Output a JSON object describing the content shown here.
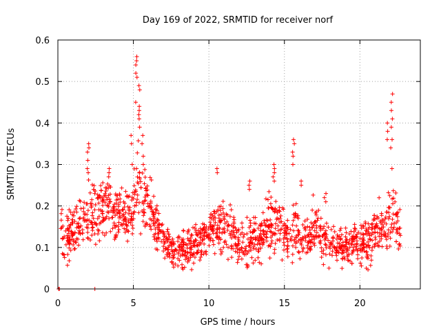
{
  "chart_data": {
    "type": "scatter",
    "title": "Day 169 of 2022, SRMTID for receiver norf",
    "xlabel": "GPS time / hours",
    "ylabel": "SRMTID / TECUs",
    "xlim": [
      0,
      24
    ],
    "ylim": [
      0,
      0.6
    ],
    "x_ticks": [
      0,
      5,
      10,
      15,
      20
    ],
    "x_tick_labels": [
      "0",
      "5",
      "10",
      "15",
      "20"
    ],
    "y_ticks": [
      0,
      0.1,
      0.2,
      0.3,
      0.4,
      0.5,
      0.6
    ],
    "y_tick_labels": [
      "0",
      "0.1",
      "0.2",
      "0.3",
      "0.4",
      "0.5",
      "0.6"
    ],
    "grid": true,
    "marker": "+",
    "series_color": "#ff0000",
    "envelope": {
      "x": [
        0.2,
        0.5,
        1.0,
        1.5,
        2.0,
        2.5,
        3.0,
        3.5,
        4.0,
        4.5,
        5.0,
        5.3,
        5.6,
        6.0,
        6.5,
        7.0,
        7.5,
        8.0,
        8.5,
        9.0,
        9.5,
        10.0,
        10.5,
        11.0,
        11.5,
        12.0,
        12.5,
        13.0,
        13.5,
        14.0,
        14.3,
        14.7,
        15.0,
        15.5,
        15.8,
        16.0,
        16.5,
        17.0,
        17.5,
        18.0,
        18.5,
        19.0,
        19.5,
        20.0,
        20.5,
        21.0,
        21.5,
        22.0,
        22.3,
        22.7
      ],
      "median": [
        0.15,
        0.11,
        0.14,
        0.16,
        0.17,
        0.18,
        0.19,
        0.2,
        0.18,
        0.17,
        0.2,
        0.26,
        0.22,
        0.2,
        0.16,
        0.12,
        0.09,
        0.09,
        0.1,
        0.11,
        0.12,
        0.14,
        0.15,
        0.14,
        0.13,
        0.11,
        0.1,
        0.12,
        0.14,
        0.16,
        0.17,
        0.14,
        0.13,
        0.12,
        0.15,
        0.12,
        0.13,
        0.14,
        0.13,
        0.11,
        0.1,
        0.1,
        0.11,
        0.11,
        0.12,
        0.13,
        0.15,
        0.16,
        0.18,
        0.16
      ],
      "spread": [
        0.05,
        0.04,
        0.05,
        0.05,
        0.06,
        0.06,
        0.06,
        0.06,
        0.05,
        0.05,
        0.06,
        0.08,
        0.07,
        0.06,
        0.05,
        0.04,
        0.03,
        0.03,
        0.04,
        0.04,
        0.04,
        0.05,
        0.05,
        0.05,
        0.04,
        0.04,
        0.04,
        0.05,
        0.05,
        0.06,
        0.06,
        0.05,
        0.05,
        0.04,
        0.05,
        0.04,
        0.04,
        0.05,
        0.04,
        0.04,
        0.03,
        0.03,
        0.04,
        0.04,
        0.05,
        0.05,
        0.05,
        0.06,
        0.06,
        0.05
      ]
    },
    "n_points": 1500,
    "peaks": [
      {
        "x": 2.0,
        "y": [
          0.35,
          0.34,
          0.33,
          0.31,
          0.29,
          0.28
        ]
      },
      {
        "x": 3.4,
        "y": [
          0.29,
          0.28,
          0.27
        ]
      },
      {
        "x": 4.9,
        "y": [
          0.37,
          0.35,
          0.3
        ]
      },
      {
        "x": 5.2,
        "y": [
          0.56,
          0.55,
          0.54,
          0.52,
          0.51,
          0.45
        ]
      },
      {
        "x": 5.4,
        "y": [
          0.49,
          0.48,
          0.44,
          0.43,
          0.42,
          0.41,
          0.39
        ]
      },
      {
        "x": 5.6,
        "y": [
          0.37,
          0.35,
          0.32,
          0.3
        ]
      },
      {
        "x": 10.5,
        "y": [
          0.29,
          0.28
        ]
      },
      {
        "x": 12.7,
        "y": [
          0.26,
          0.25,
          0.24
        ]
      },
      {
        "x": 14.3,
        "y": [
          0.3,
          0.29,
          0.28,
          0.27,
          0.26
        ]
      },
      {
        "x": 15.6,
        "y": [
          0.36,
          0.35,
          0.33,
          0.32,
          0.3
        ]
      },
      {
        "x": 16.1,
        "y": [
          0.26,
          0.25
        ]
      },
      {
        "x": 17.7,
        "y": [
          0.23,
          0.22,
          0.21
        ]
      },
      {
        "x": 21.8,
        "y": [
          0.4,
          0.38,
          0.36
        ]
      },
      {
        "x": 22.1,
        "y": [
          0.47,
          0.45,
          0.43,
          0.41,
          0.39,
          0.36,
          0.34,
          0.29
        ]
      }
    ],
    "zero_points": [
      {
        "x": 0.05,
        "y": 0
      },
      {
        "x": 0.1,
        "y": 0
      },
      {
        "x": 2.45,
        "y": 0
      }
    ]
  }
}
